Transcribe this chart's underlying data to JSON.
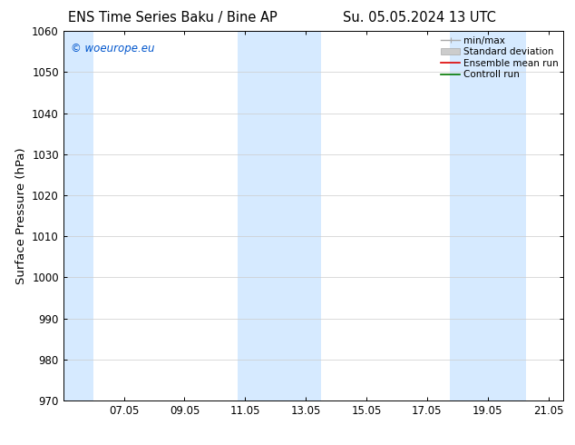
{
  "title_left": "ENS Time Series Baku / Bine AP",
  "title_right": "Su. 05.05.2024 13 UTC",
  "ylabel": "Surface Pressure (hPa)",
  "ylim": [
    970,
    1060
  ],
  "yticks": [
    970,
    980,
    990,
    1000,
    1010,
    1020,
    1030,
    1040,
    1050,
    1060
  ],
  "xtick_labels": [
    "07.05",
    "09.05",
    "11.05",
    "13.05",
    "15.05",
    "17.05",
    "19.05",
    "21.05"
  ],
  "xlim": [
    5.0,
    21.5
  ],
  "xtick_positions": [
    7,
    9,
    11,
    13,
    15,
    17,
    19,
    21
  ],
  "watermark": "© woeurope.eu",
  "watermark_color": "#0055cc",
  "shaded_bands": [
    {
      "x_start": 5.0,
      "x_end": 6.0,
      "color": "#d6eaff",
      "alpha": 1.0
    },
    {
      "x_start": 10.75,
      "x_end": 12.0,
      "color": "#d6eaff",
      "alpha": 1.0
    },
    {
      "x_start": 12.0,
      "x_end": 13.5,
      "color": "#d6eaff",
      "alpha": 1.0
    },
    {
      "x_start": 17.75,
      "x_end": 18.75,
      "color": "#d6eaff",
      "alpha": 1.0
    },
    {
      "x_start": 18.75,
      "x_end": 20.25,
      "color": "#d6eaff",
      "alpha": 1.0
    }
  ],
  "bg_color": "#ffffff",
  "plot_bg_color": "#ffffff",
  "grid_color": "#cccccc",
  "tick_label_fontsize": 8.5,
  "axis_label_fontsize": 9.5,
  "title_fontsize": 10.5,
  "legend_fontsize": 7.5
}
